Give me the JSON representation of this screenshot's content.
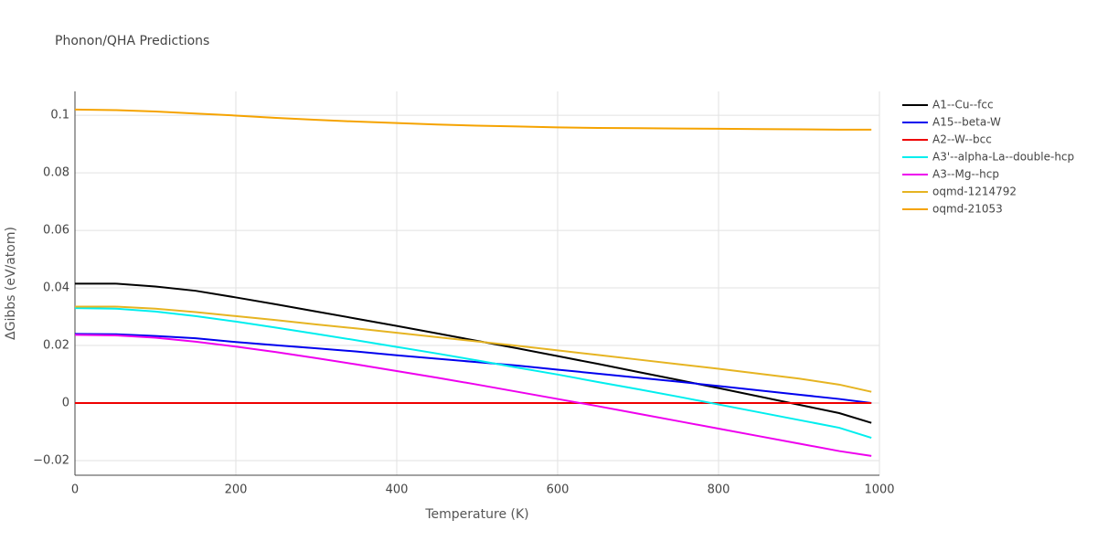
{
  "chart_data": {
    "type": "line",
    "title": "Phonon/QHA Predictions",
    "x_label": "Temperature (K)",
    "y_label": "ΔGibbs (eV/atom)",
    "x": [
      0,
      50,
      100,
      150,
      200,
      250,
      300,
      350,
      400,
      450,
      500,
      550,
      600,
      650,
      700,
      750,
      800,
      850,
      900,
      950,
      990
    ],
    "xlim": [
      0,
      1000
    ],
    "xticks": [
      0,
      200,
      400,
      600,
      800,
      1000
    ],
    "ylim": [
      -0.0251,
      0.1083
    ],
    "yticks": [
      {
        "value": -0.02,
        "label": "−0.02"
      },
      0,
      0.02,
      0.04,
      0.06,
      0.08,
      0.1
    ],
    "grid": true,
    "series": [
      {
        "name": "A1--Cu--fcc",
        "color": "#000000",
        "values": [
          0.0415,
          0.0415,
          0.0405,
          0.039,
          0.0367,
          0.0343,
          0.0318,
          0.0293,
          0.0268,
          0.0242,
          0.0216,
          0.019,
          0.0163,
          0.0136,
          0.0108,
          0.008,
          0.0052,
          0.0023,
          -0.0006,
          -0.0035,
          -0.0069
        ]
      },
      {
        "name": "A15--beta-W",
        "color": "#0000ee",
        "values": [
          0.024,
          0.0239,
          0.0233,
          0.0225,
          0.0212,
          0.0201,
          0.019,
          0.0179,
          0.0166,
          0.0154,
          0.0142,
          0.013,
          0.0116,
          0.0102,
          0.0088,
          0.0074,
          0.0059,
          0.0044,
          0.0029,
          0.0014,
          0.0
        ]
      },
      {
        "name": "A2--W--bcc",
        "color": "#ee0000",
        "values": [
          0,
          0,
          0,
          0,
          0,
          0,
          0,
          0,
          0,
          0,
          0,
          0,
          0,
          0,
          0,
          0,
          0,
          0,
          0,
          0,
          0
        ]
      },
      {
        "name": "A3'--alpha-La--double-hcp",
        "color": "#00eeee",
        "values": [
          0.033,
          0.0328,
          0.0318,
          0.0302,
          0.0283,
          0.0262,
          0.024,
          0.0218,
          0.0195,
          0.0172,
          0.0148,
          0.0123,
          0.0099,
          0.0073,
          0.0048,
          0.0022,
          -0.0005,
          -0.0032,
          -0.0059,
          -0.0086,
          -0.0121
        ]
      },
      {
        "name": "A3--Mg--hcp",
        "color": "#ee00ee",
        "values": [
          0.0237,
          0.0235,
          0.0227,
          0.0213,
          0.0196,
          0.0177,
          0.0156,
          0.0134,
          0.0111,
          0.0088,
          0.0064,
          0.0039,
          0.0014,
          -0.0011,
          -0.0037,
          -0.0063,
          -0.0089,
          -0.0115,
          -0.0141,
          -0.0167,
          -0.0184
        ]
      },
      {
        "name": "oqmd-1214792",
        "color": "#e6b422",
        "values": [
          0.0335,
          0.0335,
          0.0328,
          0.0316,
          0.0302,
          0.0288,
          0.0273,
          0.0259,
          0.0244,
          0.0229,
          0.0214,
          0.0199,
          0.0183,
          0.0167,
          0.0151,
          0.0135,
          0.0119,
          0.0102,
          0.0085,
          0.0064,
          0.0039
        ]
      },
      {
        "name": "oqmd-21053",
        "color": "#f5a300",
        "values": [
          0.102,
          0.1018,
          0.1013,
          0.1006,
          0.0999,
          0.0991,
          0.0984,
          0.0978,
          0.0973,
          0.0968,
          0.0964,
          0.0961,
          0.0958,
          0.0956,
          0.0955,
          0.0954,
          0.0953,
          0.0952,
          0.0951,
          0.095,
          0.095
        ]
      }
    ]
  }
}
